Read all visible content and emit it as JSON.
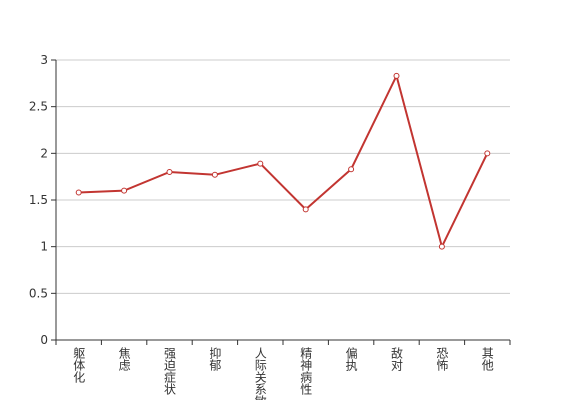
{
  "chart_data": {
    "type": "line",
    "categories": [
      "躯体化",
      "焦虑",
      "强迫症状",
      "抑郁",
      "人际关系敏感",
      "精神病性",
      "偏执",
      "敌对",
      "恐怖",
      "其他"
    ],
    "values": [
      1.58,
      1.6,
      1.8,
      1.77,
      1.89,
      1.4,
      1.83,
      2.83,
      1.0,
      2.0
    ],
    "color": "#c23531",
    "ylim": [
      0,
      3
    ],
    "yticks": [
      0,
      0.5,
      1,
      1.5,
      2,
      2.5,
      3
    ],
    "grid": true
  }
}
